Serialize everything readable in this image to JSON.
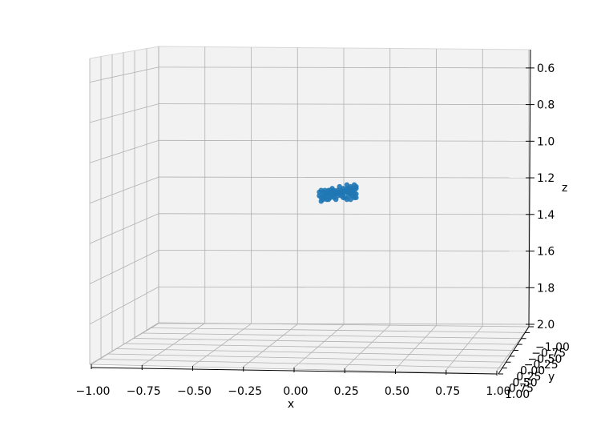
{
  "chart_data": {
    "type": "scatter",
    "projection": "3d",
    "title": "",
    "xlabel": "x",
    "ylabel": "y",
    "zlabel": "z",
    "xlim": [
      -1.0,
      1.0
    ],
    "ylim": [
      -1.0,
      1.0
    ],
    "zlim": [
      0.5,
      2.0
    ],
    "z_inverted": true,
    "grid": true,
    "x_ticks": [
      "−1.00",
      "−0.75",
      "−0.50",
      "−0.25",
      "0.00",
      "0.25",
      "0.50",
      "0.75",
      "1.00"
    ],
    "y_ticks": [
      "−1.00",
      "−0.75",
      "−0.50",
      "−0.25",
      "0.00",
      "0.25",
      "0.50",
      "0.75",
      "1.00"
    ],
    "z_ticks": [
      "0.6",
      "0.8",
      "1.0",
      "1.2",
      "1.4",
      "1.6",
      "1.8",
      "2.0"
    ],
    "x_tick_values": [
      -1.0,
      -0.75,
      -0.5,
      -0.25,
      0.0,
      0.25,
      0.5,
      0.75,
      1.0
    ],
    "z_tick_values": [
      0.6,
      0.8,
      1.0,
      1.2,
      1.4,
      1.6,
      1.8,
      2.0
    ],
    "marker_color": "#1f77b4",
    "pane_color": "#f2f2f2",
    "grid_color": "#b0b0b0",
    "points": [
      {
        "x": 0.0,
        "z": 1.23
      },
      {
        "x": 0.01,
        "z": 1.22
      },
      {
        "x": 0.02,
        "z": 1.23
      },
      {
        "x": 0.03,
        "z": 1.22
      },
      {
        "x": 0.04,
        "z": 1.23
      },
      {
        "x": 0.05,
        "z": 1.22
      },
      {
        "x": 0.06,
        "z": 1.22
      },
      {
        "x": 0.07,
        "z": 1.23
      },
      {
        "x": 0.08,
        "z": 1.22
      },
      {
        "x": 0.09,
        "z": 1.23
      },
      {
        "x": 0.1,
        "z": 1.22
      },
      {
        "x": 0.11,
        "z": 1.23
      },
      {
        "x": 0.12,
        "z": 1.22
      },
      {
        "x": 0.13,
        "z": 1.21
      },
      {
        "x": 0.14,
        "z": 1.22
      },
      {
        "x": 0.15,
        "z": 1.21
      },
      {
        "x": 0.16,
        "z": 1.21
      },
      {
        "x": 0.17,
        "z": 1.22
      },
      {
        "x": 0.18,
        "z": 1.21
      },
      {
        "x": 0.19,
        "z": 1.22
      },
      {
        "x": 0.2,
        "z": 1.21
      },
      {
        "x": 0.0,
        "z": 1.25
      },
      {
        "x": 0.01,
        "z": 1.26
      },
      {
        "x": 0.02,
        "z": 1.25
      },
      {
        "x": 0.03,
        "z": 1.24
      },
      {
        "x": 0.04,
        "z": 1.25
      },
      {
        "x": 0.05,
        "z": 1.24
      },
      {
        "x": 0.06,
        "z": 1.24
      },
      {
        "x": 0.07,
        "z": 1.25
      },
      {
        "x": 0.08,
        "z": 1.24
      },
      {
        "x": 0.09,
        "z": 1.24
      },
      {
        "x": 0.1,
        "z": 1.23
      },
      {
        "x": 0.11,
        "z": 1.24
      },
      {
        "x": 0.12,
        "z": 1.23
      },
      {
        "x": 0.13,
        "z": 1.24
      },
      {
        "x": 0.14,
        "z": 1.23
      },
      {
        "x": 0.15,
        "z": 1.23
      },
      {
        "x": 0.16,
        "z": 1.23
      },
      {
        "x": 0.17,
        "z": 1.24
      },
      {
        "x": 0.18,
        "z": 1.23
      },
      {
        "x": 0.19,
        "z": 1.24
      },
      {
        "x": 0.2,
        "z": 1.24
      },
      {
        "x": 0.02,
        "z": 1.27
      },
      {
        "x": 0.03,
        "z": 1.26
      },
      {
        "x": 0.04,
        "z": 1.27
      },
      {
        "x": 0.06,
        "z": 1.26
      },
      {
        "x": 0.08,
        "z": 1.26
      },
      {
        "x": 0.1,
        "z": 1.25
      },
      {
        "x": 0.12,
        "z": 1.25
      },
      {
        "x": 0.14,
        "z": 1.26
      },
      {
        "x": 0.16,
        "z": 1.25
      },
      {
        "x": 0.18,
        "z": 1.25
      },
      {
        "x": 0.19,
        "z": 1.26
      },
      {
        "x": 0.2,
        "z": 1.26
      },
      {
        "x": 0.01,
        "z": 1.28
      },
      {
        "x": 0.05,
        "z": 1.27
      },
      {
        "x": 0.09,
        "z": 1.27
      },
      {
        "x": 0.13,
        "z": 1.26
      },
      {
        "x": 0.15,
        "z": 1.27
      },
      {
        "x": 0.17,
        "z": 1.27
      },
      {
        "x": 0.07,
        "z": 1.21
      },
      {
        "x": 0.11,
        "z": 1.2
      },
      {
        "x": 0.15,
        "z": 1.19
      },
      {
        "x": 0.17,
        "z": 1.2
      },
      {
        "x": 0.19,
        "z": 1.19
      },
      {
        "x": 0.2,
        "z": 1.2
      }
    ]
  }
}
